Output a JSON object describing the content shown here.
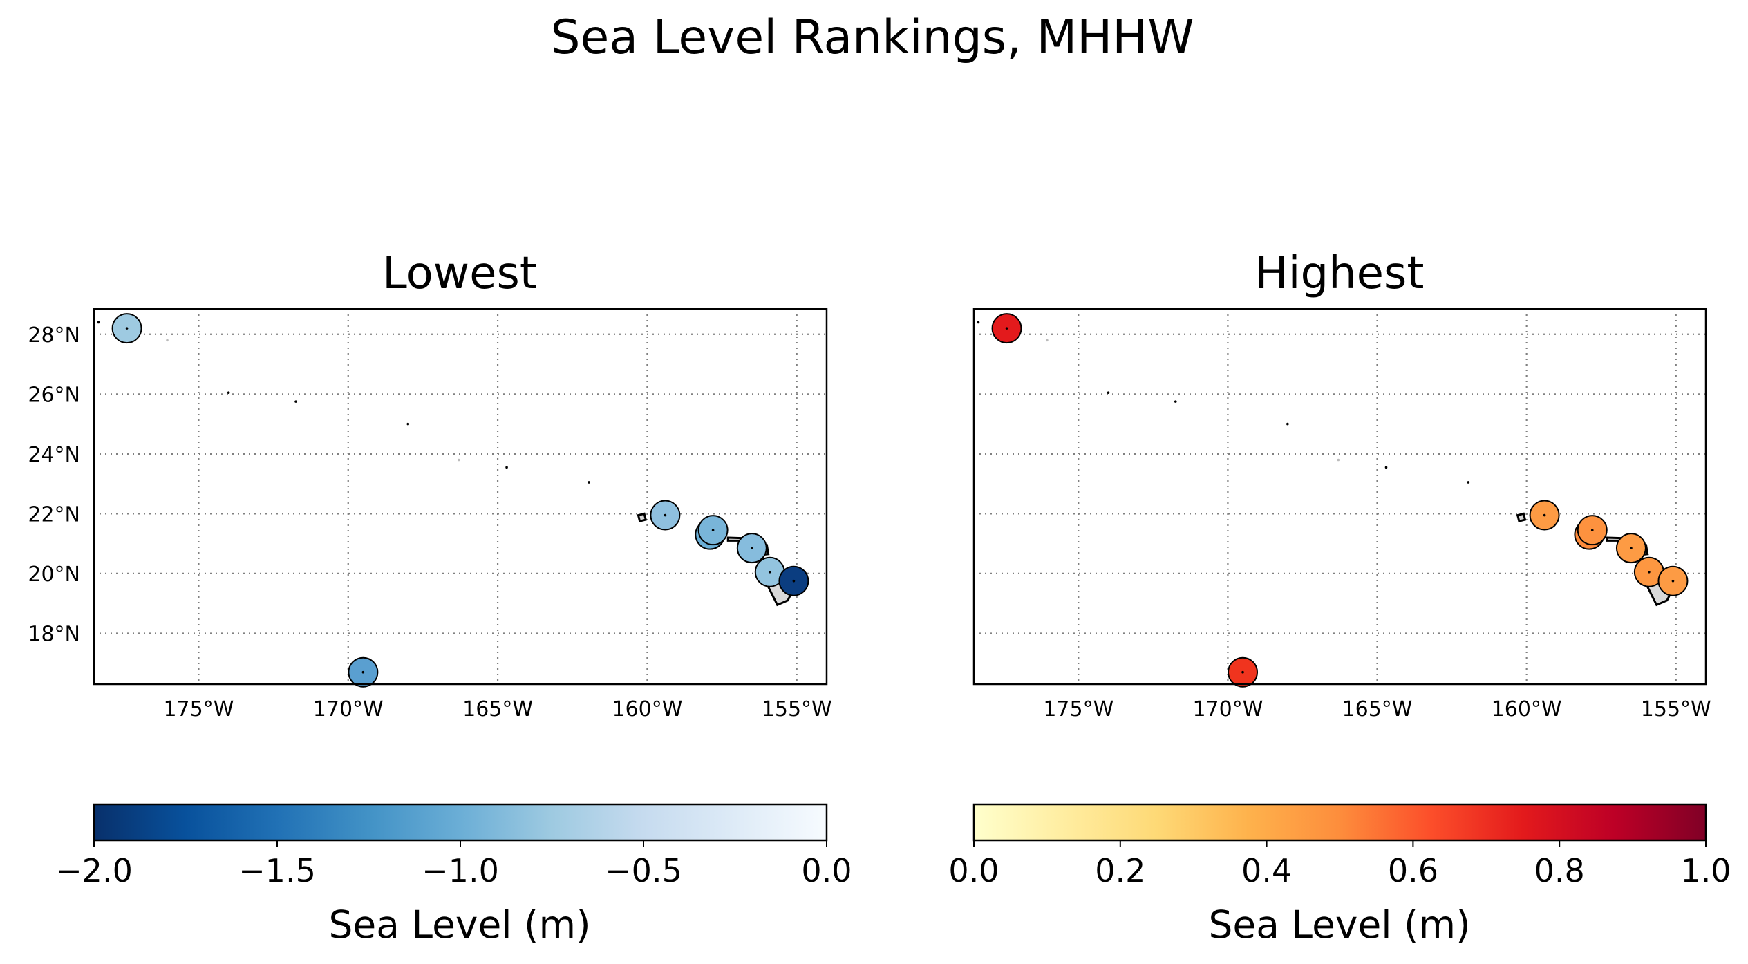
{
  "figure_title": "Sea Level Rankings, MHHW",
  "chart_data": [
    {
      "type": "scatter",
      "title": "Lowest",
      "map_extent": {
        "lon": [
          -178.5,
          -154.0
        ],
        "lat": [
          16.3,
          28.85
        ]
      },
      "x_ticks": [
        {
          "value": -175,
          "label": "175°W"
        },
        {
          "value": -170,
          "label": "170°W"
        },
        {
          "value": -165,
          "label": "165°W"
        },
        {
          "value": -160,
          "label": "160°W"
        },
        {
          "value": -155,
          "label": "155°W"
        }
      ],
      "y_ticks": [
        {
          "value": 28,
          "label": "28°N"
        },
        {
          "value": 26,
          "label": "26°N"
        },
        {
          "value": 24,
          "label": "24°N"
        },
        {
          "value": 22,
          "label": "22°N"
        },
        {
          "value": 20,
          "label": "20°N"
        },
        {
          "value": 18,
          "label": "18°N"
        }
      ],
      "grid": true,
      "grid_style": "dotted",
      "colormap": "Blues_r",
      "colorbar": {
        "range": [
          -2.0,
          0.0
        ],
        "ticks": [
          "−2.0",
          "−1.5",
          "−1.0",
          "−0.5",
          "0.0"
        ],
        "label": "Sea Level (m)",
        "stops": [
          "#08306b",
          "#08519c",
          "#2171b5",
          "#4292c6",
          "#6baed6",
          "#9ecae1",
          "#c6dbef",
          "#deebf7",
          "#f7fbff"
        ]
      },
      "stations": [
        {
          "lon": -177.4,
          "lat": 28.2,
          "value": -0.7,
          "color": "#9ecae1"
        },
        {
          "lon": -169.5,
          "lat": 16.7,
          "value": -1.1,
          "color": "#5a9fd0"
        },
        {
          "lon": -159.4,
          "lat": 21.95,
          "value": -0.8,
          "color": "#8fc0df"
        },
        {
          "lon": -157.9,
          "lat": 21.3,
          "value": -1.0,
          "color": "#6aaed6"
        },
        {
          "lon": -157.8,
          "lat": 21.45,
          "value": -0.9,
          "color": "#79b5d9"
        },
        {
          "lon": -156.5,
          "lat": 20.85,
          "value": -0.85,
          "color": "#86bcdd"
        },
        {
          "lon": -155.9,
          "lat": 20.05,
          "value": -0.8,
          "color": "#93c4df"
        },
        {
          "lon": -155.1,
          "lat": 19.75,
          "value": -1.9,
          "color": "#0b3d80"
        }
      ]
    },
    {
      "type": "scatter",
      "title": "Highest",
      "map_extent": {
        "lon": [
          -178.5,
          -154.0
        ],
        "lat": [
          16.3,
          28.85
        ]
      },
      "x_ticks": [
        {
          "value": -175,
          "label": "175°W"
        },
        {
          "value": -170,
          "label": "170°W"
        },
        {
          "value": -165,
          "label": "165°W"
        },
        {
          "value": -160,
          "label": "160°W"
        },
        {
          "value": -155,
          "label": "155°W"
        }
      ],
      "grid": true,
      "grid_style": "dotted",
      "colormap": "YlOrRd",
      "colorbar": {
        "range": [
          0.0,
          1.0
        ],
        "ticks": [
          "0.0",
          "0.2",
          "0.4",
          "0.6",
          "0.8",
          "1.0"
        ],
        "label": "Sea Level (m)",
        "stops": [
          "#ffffcc",
          "#ffeda0",
          "#fed976",
          "#feb24c",
          "#fd8d3c",
          "#fc4e2a",
          "#e31a1c",
          "#bd0026",
          "#800026"
        ]
      },
      "stations": [
        {
          "lon": -177.4,
          "lat": 28.2,
          "value": 0.75,
          "color": "#e31a1c"
        },
        {
          "lon": -169.5,
          "lat": 16.7,
          "value": 0.65,
          "color": "#f0341e"
        },
        {
          "lon": -159.4,
          "lat": 21.95,
          "value": 0.45,
          "color": "#fd9b44"
        },
        {
          "lon": -157.9,
          "lat": 21.3,
          "value": 0.5,
          "color": "#fd8a3b"
        },
        {
          "lon": -157.8,
          "lat": 21.45,
          "value": 0.48,
          "color": "#fd923f"
        },
        {
          "lon": -156.5,
          "lat": 20.85,
          "value": 0.45,
          "color": "#fd9b44"
        },
        {
          "lon": -155.9,
          "lat": 20.05,
          "value": 0.46,
          "color": "#fd9741"
        },
        {
          "lon": -155.1,
          "lat": 19.75,
          "value": 0.45,
          "color": "#fd9b44"
        }
      ]
    }
  ]
}
